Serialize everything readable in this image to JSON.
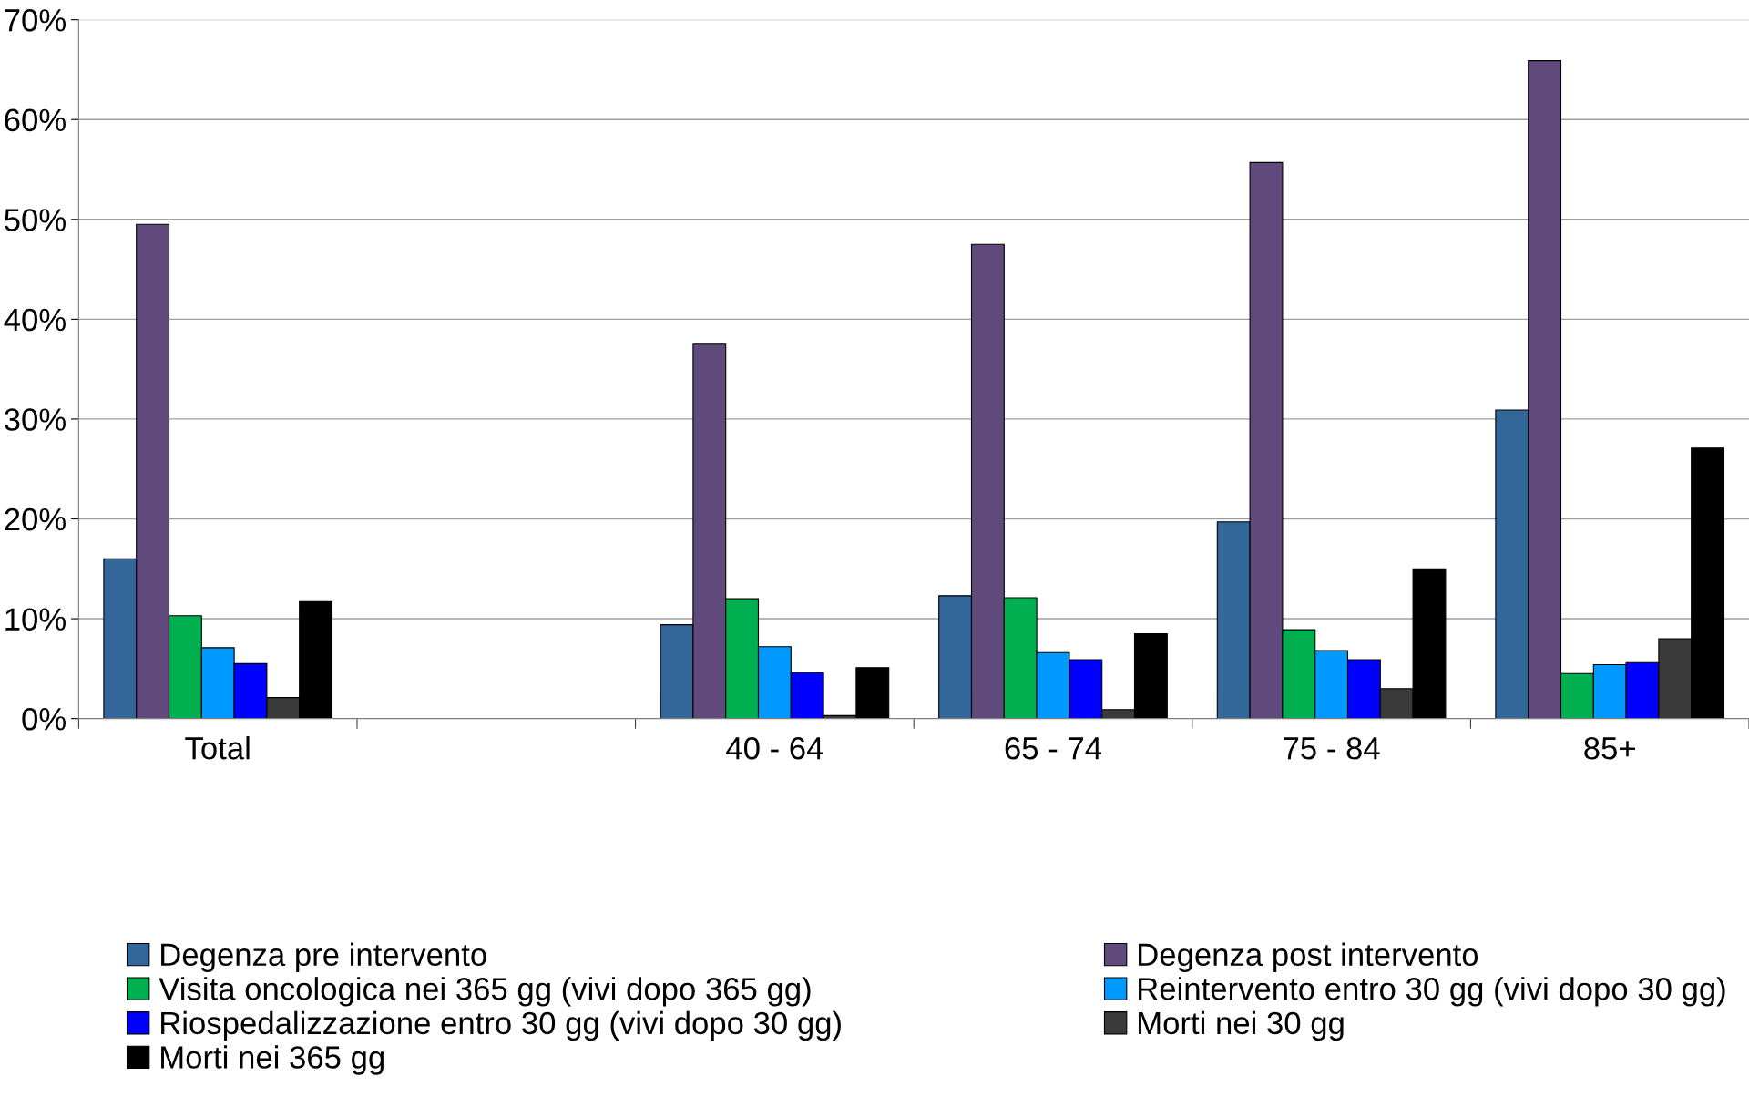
{
  "chart_data": {
    "type": "bar",
    "categories": [
      "Total",
      null,
      "40 - 64",
      "65 - 74",
      "75 - 84",
      "85+"
    ],
    "series": [
      {
        "name": "Degenza pre intervento",
        "color": "#336699",
        "values": [
          16.0,
          null,
          9.4,
          12.3,
          19.7,
          30.9
        ]
      },
      {
        "name": "Degenza post intervento",
        "color": "#604a7b",
        "values": [
          49.5,
          null,
          37.5,
          47.5,
          55.7,
          65.9
        ]
      },
      {
        "name": "Visita oncologica nei 365 gg (vivi dopo 365 gg)",
        "color": "#00b050",
        "values": [
          10.3,
          null,
          12.0,
          12.1,
          8.9,
          4.5
        ]
      },
      {
        "name": "Reintervento entro 30 gg (vivi dopo 30 gg)",
        "color": "#0099ff",
        "values": [
          7.1,
          null,
          7.2,
          6.6,
          6.8,
          5.4
        ]
      },
      {
        "name": "Riospedalizzazione entro 30 gg (vivi dopo 30 gg)",
        "color": "#0000ff",
        "values": [
          5.5,
          null,
          4.6,
          5.9,
          5.9,
          5.6
        ]
      },
      {
        "name": "Morti nei 30 gg",
        "color": "#3a3a3a",
        "values": [
          2.1,
          null,
          0.3,
          0.9,
          3.0,
          8.0
        ]
      },
      {
        "name": "Morti nei 365 gg",
        "color": "#000000",
        "values": [
          11.7,
          null,
          5.1,
          8.5,
          15.0,
          27.1
        ]
      }
    ],
    "ylim": [
      0,
      70
    ],
    "yticks": [
      {
        "value": 0,
        "label": "0%"
      },
      {
        "value": 10,
        "label": "10%"
      },
      {
        "value": 20,
        "label": "20%"
      },
      {
        "value": 30,
        "label": "30%"
      },
      {
        "value": 40,
        "label": "40%"
      },
      {
        "value": 50,
        "label": "50%"
      },
      {
        "value": 60,
        "label": "60%"
      },
      {
        "value": 70,
        "label": "70%"
      }
    ],
    "grid": "y",
    "legend": "bottom"
  }
}
